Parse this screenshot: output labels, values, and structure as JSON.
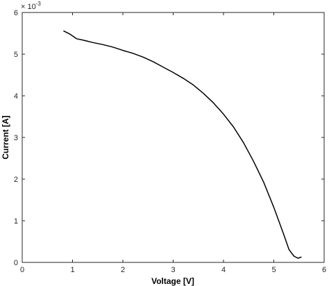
{
  "chart_data": {
    "type": "line",
    "xlabel": "Voltage [V]",
    "ylabel": "Current [A]",
    "y_multiplier_label": "× 10",
    "y_multiplier_exponent": "-3",
    "xlim": [
      0,
      6
    ],
    "ylim": [
      0,
      6
    ],
    "y_scale_factor": 0.001,
    "xticks": [
      "0",
      "1",
      "2",
      "3",
      "4",
      "5",
      "6"
    ],
    "yticks": [
      "0",
      "1",
      "2",
      "3",
      "4",
      "5",
      "6"
    ],
    "grid": false,
    "series": [
      {
        "color": "#000000",
        "x": [
          0.82,
          0.95,
          1.08,
          1.2,
          1.4,
          1.6,
          1.8,
          2.0,
          2.2,
          2.4,
          2.6,
          2.8,
          3.0,
          3.2,
          3.4,
          3.6,
          3.8,
          4.0,
          4.2,
          4.4,
          4.6,
          4.8,
          5.0,
          5.1,
          5.2,
          5.3,
          5.4,
          5.48,
          5.55
        ],
        "y": [
          5.56,
          5.48,
          5.37,
          5.34,
          5.28,
          5.23,
          5.17,
          5.09,
          5.02,
          4.93,
          4.82,
          4.69,
          4.56,
          4.42,
          4.26,
          4.06,
          3.83,
          3.56,
          3.25,
          2.87,
          2.42,
          1.92,
          1.32,
          0.99,
          0.66,
          0.31,
          0.15,
          0.1,
          0.13
        ]
      }
    ]
  }
}
